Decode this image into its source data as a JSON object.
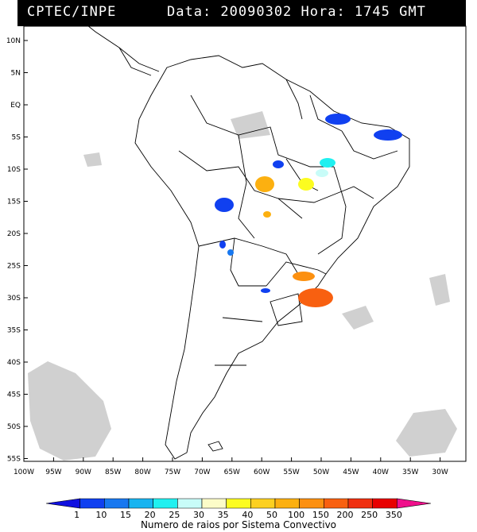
{
  "header": {
    "left": "CPTEC/INPE",
    "right": "Data: 20090302 Hora: 1745 GMT"
  },
  "map": {
    "lat_labels": [
      "10N",
      "5N",
      "EQ",
      "5S",
      "10S",
      "15S",
      "20S",
      "25S",
      "30S",
      "35S",
      "40S",
      "45S",
      "50S",
      "55S"
    ],
    "lon_labels": [
      "100W",
      "95W",
      "90W",
      "85W",
      "80W",
      "75W",
      "70W",
      "65W",
      "60W",
      "55W",
      "50W",
      "45W",
      "40W",
      "35W",
      "30W"
    ],
    "lon_range": [
      -100,
      -27
    ],
    "lat_range": [
      -56,
      12
    ]
  },
  "colorbar": {
    "labels": [
      "1",
      "10",
      "15",
      "20",
      "25",
      "30",
      "35",
      "40",
      "50",
      "100",
      "150",
      "200",
      "250",
      "350"
    ],
    "colors": [
      "#1010e0",
      "#1040f0",
      "#1878f0",
      "#18b4f0",
      "#20f0f0",
      "#c8fcf8",
      "#fcfcc8",
      "#fcfc20",
      "#fcd020",
      "#fcb010",
      "#fc9010",
      "#f86010",
      "#f03010",
      "#e80000",
      "#f0108c"
    ],
    "caption": "Numero de raios por Sistema Convectivo"
  }
}
